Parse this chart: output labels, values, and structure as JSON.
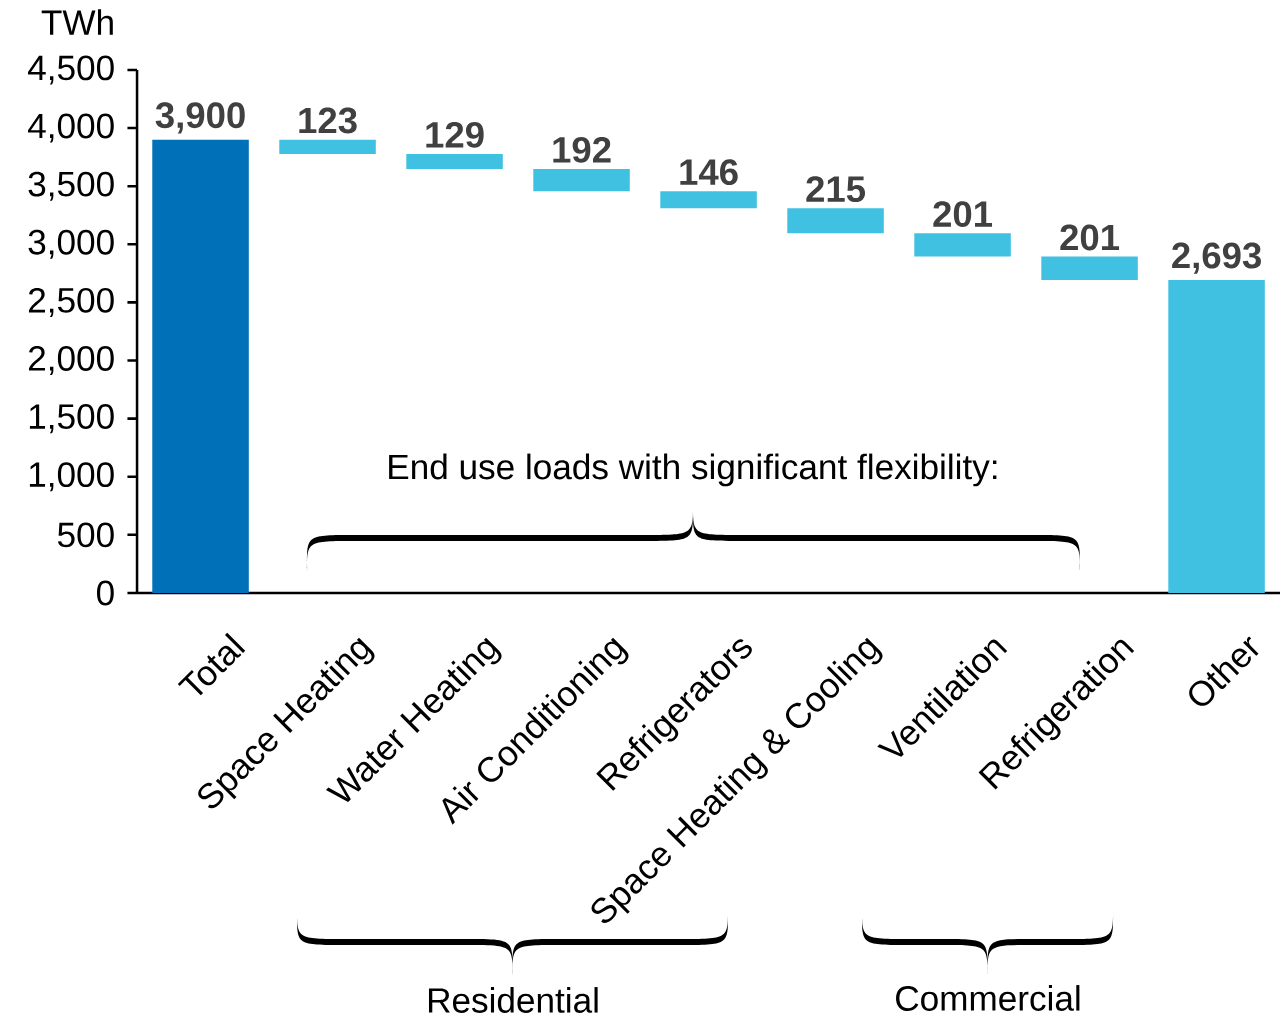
{
  "chart_data": {
    "type": "bar",
    "ylabel": "TWh",
    "categories": [
      "Total",
      "Space Heating",
      "Water Heating",
      "Air Conditioning",
      "Refrigerators",
      "Space Heating & Cooling",
      "Ventilation",
      "Refrigeration",
      "Other"
    ],
    "values": [
      3900,
      123,
      129,
      192,
      146,
      215,
      201,
      201,
      2693
    ],
    "base": [
      0,
      3777,
      3648,
      3456,
      3310,
      3095,
      2894,
      2693,
      0
    ],
    "colors": [
      "#0070b8",
      "#41c1e2",
      "#41c1e2",
      "#41c1e2",
      "#41c1e2",
      "#41c1e2",
      "#41c1e2",
      "#41c1e2",
      "#41c1e2"
    ],
    "value_labels": [
      "3,900",
      "123",
      "129",
      "192",
      "146",
      "215",
      "201",
      "201",
      "2,693"
    ],
    "ylim": [
      0,
      4500
    ],
    "yticks": [
      0,
      500,
      {
        "value": 1000,
        "label": "1,000"
      },
      {
        "value": 1500,
        "label": "1,500"
      },
      {
        "value": 2000,
        "label": "2,000"
      },
      {
        "value": 2500,
        "label": "2,500"
      },
      {
        "value": 3000,
        "label": "3,000"
      },
      {
        "value": 3500,
        "label": "3,500"
      },
      {
        "value": 4000,
        "label": "4,000"
      },
      {
        "value": 4500,
        "label": "4,500"
      }
    ],
    "annotations": [
      "End use loads with significant flexibility:",
      "Residential",
      "Commercial"
    ],
    "grid": false
  }
}
